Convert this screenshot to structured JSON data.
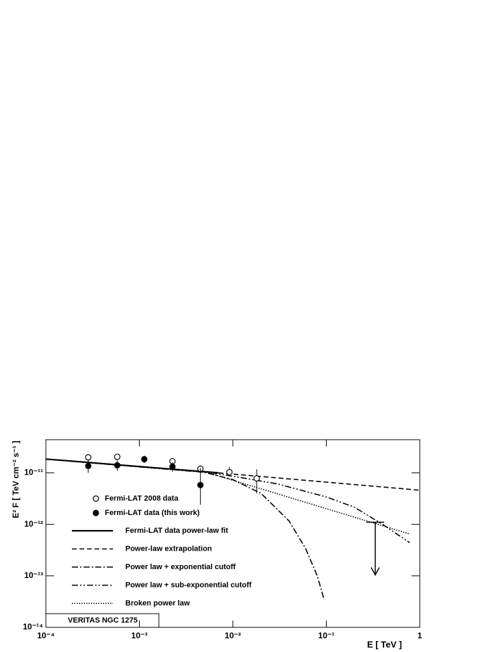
{
  "chart_data": {
    "type": "loglog",
    "xlabel": "E  [ TeV ]",
    "ylabel": "E² F  [ TeV cm⁻² s⁻¹ ]",
    "annotation": "VERITAS   NGC 1275",
    "xlim": [
      0.0001,
      1
    ],
    "ylim": [
      1e-14,
      4.4e-11
    ],
    "xticks": [
      {
        "value": 0.0001,
        "label": "10⁻⁴"
      },
      {
        "value": 0.001,
        "label": "10⁻³"
      },
      {
        "value": 0.01,
        "label": "10⁻²"
      },
      {
        "value": 0.1,
        "label": "10⁻¹"
      },
      1
    ],
    "yticks": [
      {
        "value": 1e-14,
        "label": "10⁻¹⁴"
      },
      {
        "value": 1e-13,
        "label": "10⁻¹³"
      },
      {
        "value": 1e-12,
        "label": "10⁻¹²"
      },
      {
        "value": 1e-11,
        "label": "10⁻¹¹"
      }
    ],
    "points": [
      {
        "name": "Fermi-LAT 2008 data",
        "marker": "open",
        "color": "#000000",
        "x": [
          0.000284,
          0.00058,
          0.00226,
          0.0045,
          0.0092,
          0.018
        ],
        "y": [
          2e-11,
          2.05e-11,
          1.68e-11,
          1.2e-11,
          1.03e-11,
          7.8e-12
        ],
        "ylow": [
          1.75e-11,
          1.8e-11,
          1.45e-11,
          1e-11,
          8.5e-12,
          4e-12
        ],
        "yhigh": [
          2.3e-11,
          2.35e-11,
          1.9e-11,
          1.4e-11,
          1.3e-11,
          1.17e-11
        ]
      },
      {
        "name": "Fermi-LAT data (this work)",
        "marker": "filled",
        "color": "#000000",
        "x": [
          0.000284,
          0.00058,
          0.00113,
          0.00226,
          0.0045
        ],
        "y": [
          1.36e-11,
          1.4e-11,
          1.84e-11,
          1.32e-11,
          5.8e-12
        ],
        "ylow": [
          1e-11,
          1.1e-11,
          1.55e-11,
          1.05e-11,
          2.4e-12
        ],
        "yhigh": [
          1.75e-11,
          1.75e-11,
          2.15e-11,
          1.6e-11,
          1.24e-11
        ]
      }
    ],
    "series": [
      {
        "name": "Fermi-LAT data power-law fit",
        "style": "solid",
        "color": "#000000",
        "x": [
          0.0001,
          0.007
        ],
        "y": [
          1.85e-11,
          1e-11
        ]
      },
      {
        "name": "Power-law extrapolation",
        "style": "dashed",
        "color": "#000000",
        "x": [
          0.0001,
          0.007,
          1
        ],
        "y": [
          1.85e-11,
          1e-11,
          4.6e-12
        ]
      },
      {
        "name": "Power law + exponential cutoff",
        "style": "dashdot",
        "color": "#000000",
        "x": [
          0.0001,
          0.005,
          0.01,
          0.02,
          0.04,
          0.06,
          0.08,
          0.095
        ],
        "y": [
          1.85e-11,
          1.02e-11,
          7.4e-12,
          4e-12,
          1.16e-12,
          3.4e-13,
          1e-13,
          3.4e-14
        ]
      },
      {
        "name": "Power law + sub-exponential cutoff",
        "style": "dashdotdot",
        "color": "#000000",
        "x": [
          0.0001,
          0.005,
          0.01,
          0.03,
          0.1,
          0.2,
          0.4,
          0.78
        ],
        "y": [
          1.85e-11,
          1.05e-11,
          8.6e-12,
          6.1e-12,
          3.4e-12,
          2.15e-12,
          1e-12,
          4.4e-13
        ]
      },
      {
        "name": "Broken power law",
        "style": "dotted",
        "color": "#000000",
        "x": [
          0.0001,
          0.005,
          0.78
        ],
        "y": [
          1.85e-11,
          1.05e-11,
          6.5e-13
        ]
      }
    ],
    "upper_limit": {
      "x": 0.334,
      "y": 1.1e-12
    }
  }
}
